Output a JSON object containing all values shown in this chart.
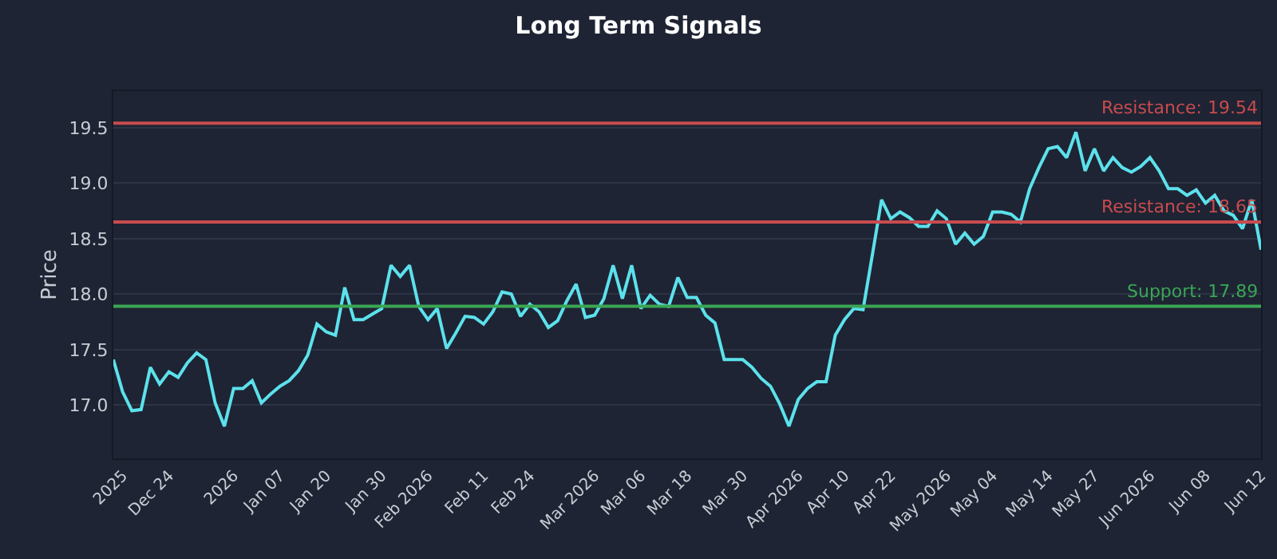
{
  "chart_data": {
    "type": "line",
    "title": "Long Term Signals",
    "ylabel": "Price",
    "categories": [
      null,
      "2025",
      null,
      null,
      null,
      null,
      "Dec 24",
      null,
      null,
      null,
      null,
      null,
      null,
      "2026",
      null,
      null,
      null,
      null,
      "Jan 07",
      null,
      null,
      null,
      null,
      "Jan 20",
      null,
      null,
      null,
      null,
      null,
      "Jan 30",
      null,
      null,
      null,
      null,
      "Feb 2026",
      null,
      null,
      null,
      null,
      null,
      "Feb 11",
      null,
      null,
      null,
      null,
      "Feb 24",
      null,
      null,
      null,
      null,
      null,
      null,
      "Mar 2026",
      null,
      null,
      null,
      null,
      "Mar 06",
      null,
      null,
      null,
      null,
      "Mar 18",
      null,
      null,
      null,
      null,
      null,
      "Mar 30",
      null,
      null,
      null,
      null,
      null,
      "Apr 2026",
      null,
      null,
      null,
      null,
      "Apr 10",
      null,
      null,
      null,
      null,
      "Apr 22",
      null,
      null,
      null,
      null,
      null,
      "May 2026",
      null,
      null,
      null,
      null,
      "May 04",
      null,
      null,
      null,
      null,
      null,
      "May 14",
      null,
      null,
      null,
      null,
      "May 27",
      null,
      null,
      null,
      null,
      null,
      "Jun 2026",
      null,
      null,
      null,
      null,
      null,
      "Jun 08",
      null,
      null,
      null,
      null,
      null,
      "Jun 12"
    ],
    "series": [
      {
        "color": "#5ce1ec",
        "values": [
          17.41,
          17.12,
          16.95,
          16.96,
          17.34,
          17.19,
          17.3,
          17.25,
          17.38,
          17.47,
          17.41,
          17.02,
          16.81,
          17.15,
          17.15,
          17.22,
          17.02,
          17.1,
          17.17,
          17.22,
          17.31,
          17.45,
          17.73,
          17.66,
          17.63,
          18.06,
          17.77,
          17.77,
          17.82,
          17.87,
          18.26,
          18.16,
          18.26,
          17.89,
          17.77,
          17.87,
          17.51,
          17.65,
          17.8,
          17.79,
          17.73,
          17.84,
          18.02,
          18.0,
          17.8,
          17.91,
          17.84,
          17.7,
          17.76,
          17.94,
          18.09,
          17.79,
          17.81,
          17.96,
          18.26,
          17.96,
          18.26,
          17.87,
          17.99,
          17.91,
          17.89,
          18.15,
          17.97,
          17.97,
          17.81,
          17.74,
          17.41,
          17.41,
          17.41,
          17.34,
          17.24,
          17.17,
          17.01,
          16.81,
          17.05,
          17.15,
          17.21,
          17.21,
          17.63,
          17.77,
          17.87,
          17.86,
          18.35,
          18.85,
          18.68,
          18.74,
          18.69,
          18.61,
          18.61,
          18.75,
          18.68,
          18.45,
          18.55,
          18.45,
          18.52,
          18.74,
          18.74,
          18.72,
          18.65,
          18.95,
          19.14,
          19.31,
          19.33,
          19.23,
          19.46,
          19.11,
          19.31,
          19.11,
          19.23,
          19.14,
          19.1,
          19.15,
          19.23,
          19.11,
          18.95,
          18.95,
          18.89,
          18.94,
          18.82,
          18.89,
          18.75,
          18.71,
          18.59,
          18.85,
          18.4
        ]
      }
    ],
    "ylim": [
      16.52,
      19.83
    ],
    "yticks": [
      {
        "value": 17,
        "label": "17.0"
      },
      17.5,
      {
        "value": 18,
        "label": "18.0"
      },
      18.5,
      {
        "value": 19,
        "label": "19.0"
      },
      19.5
    ],
    "ref_lines": [
      {
        "axis": "y",
        "value": 19.54,
        "label": "Resistance: 19.54",
        "color": "#c84b4f"
      },
      {
        "axis": "y",
        "value": 18.65,
        "label": "Resistance: 18.65",
        "color": "#c84b4f"
      },
      {
        "axis": "y",
        "value": 17.89,
        "label": "Support: 17.89",
        "color": "#3aa655"
      }
    ],
    "grid": "y",
    "marker": "none",
    "line_style": "solid"
  }
}
